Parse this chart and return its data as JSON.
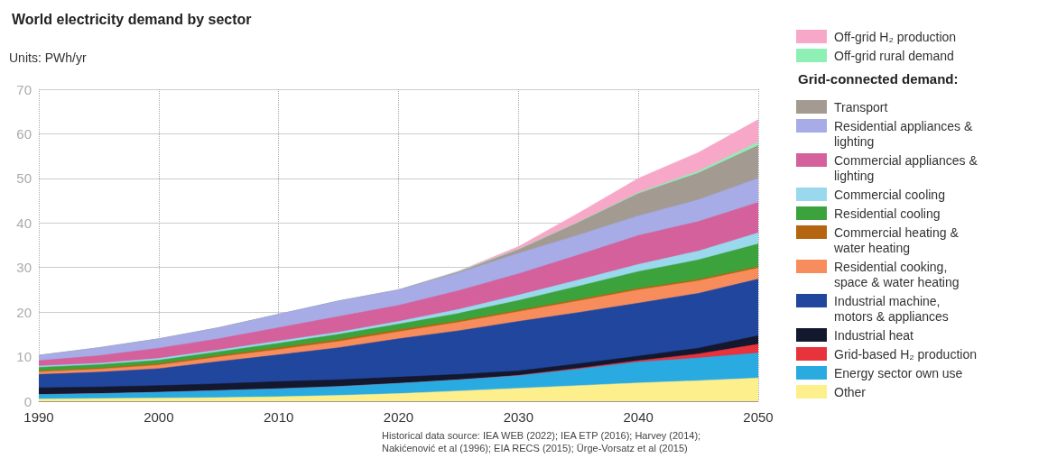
{
  "chart_data": {
    "type": "area",
    "title": "World electricity demand by sector",
    "subtitle": "Units: PWh/yr",
    "legend_title": "Grid-connected demand:",
    "stacked": true,
    "grid": true,
    "legend": "right",
    "x": [
      1990,
      1995,
      2000,
      2005,
      2010,
      2015,
      2020,
      2025,
      2030,
      2035,
      2040,
      2045,
      2050
    ],
    "xlim": [
      1990,
      2050
    ],
    "xticks": [
      1990,
      2000,
      2010,
      2020,
      2030,
      2040,
      2050
    ],
    "ylim": [
      0,
      70
    ],
    "yticks": [
      0,
      10,
      20,
      30,
      40,
      50,
      60,
      70
    ],
    "series": [
      {
        "name": "Other",
        "color": "#fcef8c",
        "values": [
          0.5,
          0.6,
          0.7,
          0.8,
          1.0,
          1.3,
          1.7,
          2.3,
          2.9,
          3.5,
          4.1,
          4.6,
          5.2
        ]
      },
      {
        "name": "Energy sector own use",
        "color": "#29abe2",
        "values": [
          1.0,
          1.1,
          1.3,
          1.6,
          1.8,
          2.0,
          2.3,
          2.5,
          2.8,
          3.7,
          4.7,
          5.1,
          5.6
        ]
      },
      {
        "name": "Grid-based H₂ production",
        "color": "#e8323c",
        "values": [
          0,
          0,
          0,
          0,
          0,
          0,
          0,
          0,
          0.1,
          0.2,
          0.3,
          0.9,
          2.0
        ]
      },
      {
        "name": "Industrial heat",
        "color": "#14182e",
        "values": [
          1.5,
          1.5,
          1.5,
          1.5,
          1.6,
          1.5,
          1.4,
          1.2,
          1.0,
          1.0,
          1.0,
          1.3,
          1.9
        ]
      },
      {
        "name": "Industrial machine, motors & appliances",
        "color": "#21469e",
        "values": [
          3.0,
          3.3,
          3.8,
          5.0,
          6.0,
          7.2,
          8.6,
          9.8,
          11.1,
          11.5,
          11.9,
          12.3,
          12.7
        ]
      },
      {
        "name": "Residential cooking, space & water heating",
        "color": "#f78c5c",
        "values": [
          0.6,
          0.7,
          0.8,
          1.0,
          1.2,
          1.4,
          1.6,
          1.9,
          2.2,
          2.6,
          3.0,
          2.8,
          2.5
        ]
      },
      {
        "name": "Commercial heating & water heating",
        "color": "#b5640f",
        "values": [
          0.2,
          0.2,
          0.3,
          0.3,
          0.4,
          0.4,
          0.4,
          0.3,
          0.3,
          0.3,
          0.3,
          0.3,
          0.3
        ]
      },
      {
        "name": "Residential cooling",
        "color": "#3ca33c",
        "values": [
          0.8,
          0.8,
          0.8,
          0.9,
          1.0,
          1.2,
          1.3,
          1.7,
          2.2,
          3.0,
          3.8,
          4.4,
          5.1
        ]
      },
      {
        "name": "Commercial cooling",
        "color": "#9ad8ee",
        "values": [
          0.3,
          0.3,
          0.4,
          0.4,
          0.5,
          0.5,
          0.6,
          0.9,
          1.2,
          1.4,
          1.6,
          2.0,
          2.5
        ]
      },
      {
        "name": "Commercial appliances & lighting",
        "color": "#d4619c",
        "values": [
          1.2,
          1.7,
          2.3,
          2.5,
          3.0,
          3.5,
          3.6,
          4.2,
          4.8,
          5.6,
          6.5,
          6.6,
          6.8
        ]
      },
      {
        "name": "Residential appliances & lighting",
        "color": "#a7abe6",
        "values": [
          1.2,
          1.8,
          2.1,
          2.5,
          3.0,
          3.5,
          3.5,
          4.0,
          4.6,
          4.5,
          4.4,
          4.9,
          5.4
        ]
      },
      {
        "name": "Transport",
        "color": "#a39a92",
        "values": [
          0,
          0,
          0,
          0,
          0,
          0,
          0,
          0.2,
          0.8,
          2.8,
          5.0,
          6.0,
          7.4
        ]
      },
      {
        "name": "Off-grid rural demand",
        "color": "#8ff0b5",
        "values": [
          0,
          0,
          0,
          0,
          0,
          0,
          0,
          0.1,
          0.1,
          0.1,
          0.2,
          0.4,
          0.7
        ]
      },
      {
        "name": "Off-grid H₂ production",
        "color": "#f7a8c8",
        "values": [
          0,
          0,
          0,
          0,
          0,
          0,
          0,
          0.1,
          0.6,
          2.0,
          3.2,
          4.2,
          5.1
        ]
      }
    ],
    "annotations": [
      "Historical data source: IEA WEB (2022); IEA ETP (2016); Harvey (2014); Nakićenović et al (1996); EIA RECS (2015); Ürge-Vorsatz et al (2015)"
    ]
  }
}
